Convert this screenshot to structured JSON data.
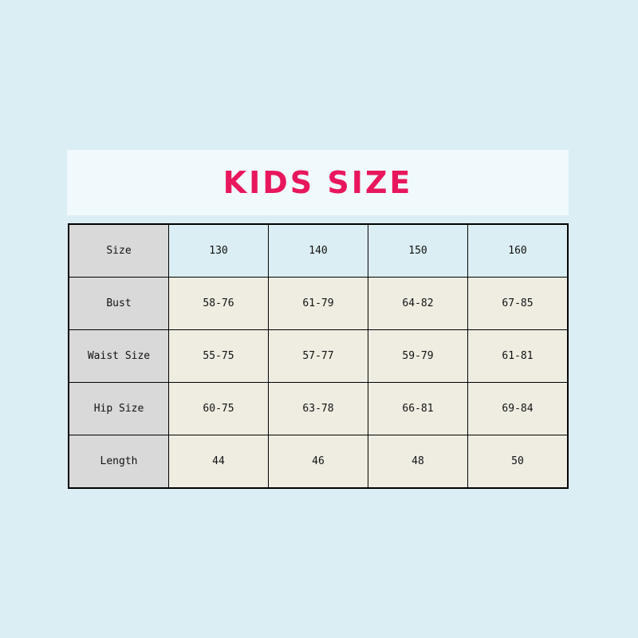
{
  "title": "KIDS SIZE",
  "colors": {
    "title": "#e8175d",
    "background": "#dbeef4",
    "label_cell": "#d9d9d9",
    "header_cell": "#dbeef4",
    "body_cell": "#efede2"
  },
  "table": {
    "header": {
      "label": "Size",
      "values": [
        "130",
        "140",
        "150",
        "160"
      ]
    },
    "rows": [
      {
        "label": "Bust",
        "values": [
          "58-76",
          "61-79",
          "64-82",
          "67-85"
        ]
      },
      {
        "label": "Waist Size",
        "values": [
          "55-75",
          "57-77",
          "59-79",
          "61-81"
        ]
      },
      {
        "label": "Hip Size",
        "values": [
          "60-75",
          "63-78",
          "66-81",
          "69-84"
        ]
      },
      {
        "label": "Length",
        "values": [
          "44",
          "46",
          "48",
          "50"
        ]
      }
    ]
  }
}
